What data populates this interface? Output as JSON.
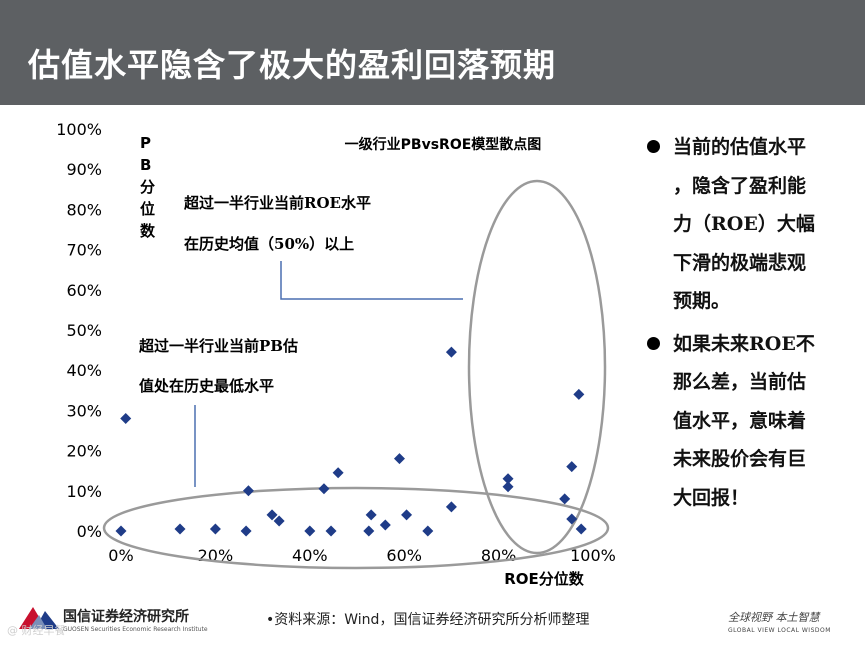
{
  "header": {
    "title": "估值水平隐含了极大的盈利回落预期"
  },
  "chart_data": {
    "type": "scatter",
    "title": "一级行业PBvsROE模型散点图",
    "xlabel": "ROE分位数",
    "ylabel": "PB分位数",
    "xlim": [
      0,
      100
    ],
    "ylim": [
      0,
      100
    ],
    "x_ticks": [
      "0%",
      "20%",
      "40%",
      "60%",
      "80%",
      "100%"
    ],
    "y_ticks": [
      "0%",
      "10%",
      "20%",
      "30%",
      "40%",
      "50%",
      "60%",
      "70%",
      "80%",
      "90%",
      "100%"
    ],
    "grid": false,
    "legend": "none",
    "marker_color": "#1f3c88",
    "points": [
      {
        "x": 0,
        "y": 0
      },
      {
        "x": 1,
        "y": 28
      },
      {
        "x": 12.5,
        "y": 0.5
      },
      {
        "x": 20,
        "y": 0.5
      },
      {
        "x": 26.5,
        "y": 0
      },
      {
        "x": 27,
        "y": 10
      },
      {
        "x": 32,
        "y": 4
      },
      {
        "x": 33.5,
        "y": 2.5
      },
      {
        "x": 40,
        "y": 0
      },
      {
        "x": 43,
        "y": 10.5
      },
      {
        "x": 44.5,
        "y": 0
      },
      {
        "x": 46,
        "y": 14.5
      },
      {
        "x": 52.5,
        "y": 0
      },
      {
        "x": 53,
        "y": 4
      },
      {
        "x": 56,
        "y": 1.5
      },
      {
        "x": 59,
        "y": 18
      },
      {
        "x": 60.5,
        "y": 4
      },
      {
        "x": 65,
        "y": 0
      },
      {
        "x": 70,
        "y": 6
      },
      {
        "x": 70,
        "y": 44.5
      },
      {
        "x": 82,
        "y": 11
      },
      {
        "x": 82,
        "y": 13
      },
      {
        "x": 94,
        "y": 8
      },
      {
        "x": 95.5,
        "y": 16
      },
      {
        "x": 95.5,
        "y": 3
      },
      {
        "x": 97,
        "y": 34
      },
      {
        "x": 97.5,
        "y": 0.5
      }
    ],
    "annotations": [
      {
        "lines": [
          "超过一半行业当前ROE水平",
          "在历史均值（50%）以上"
        ]
      },
      {
        "lines": [
          "超过一半行业当前PB估",
          "值处在历史最低水平"
        ]
      }
    ]
  },
  "bullets": [
    {
      "lines": [
        "当前的估值水平",
        "，隐含了盈利能",
        "力（ROE）大幅",
        "下滑的极端悲观",
        "预期。"
      ]
    },
    {
      "lines": [
        "如果未来ROE不",
        "那么差，当前估",
        "值水平，意味着",
        "未来股价会有巨",
        "大回报！"
      ]
    }
  ],
  "footer": {
    "company": "国信证券经济研究所",
    "company_en": "GUOSEN Securities Economic Research Institute",
    "watermark": "@ 财经早餐",
    "source": "•资料来源：Wind，国信证券经济研究所分析师整理",
    "slogan_cn": "全球视野  本土智慧",
    "slogan_en": "GLOBAL VIEW    LOCAL WISDOM"
  }
}
